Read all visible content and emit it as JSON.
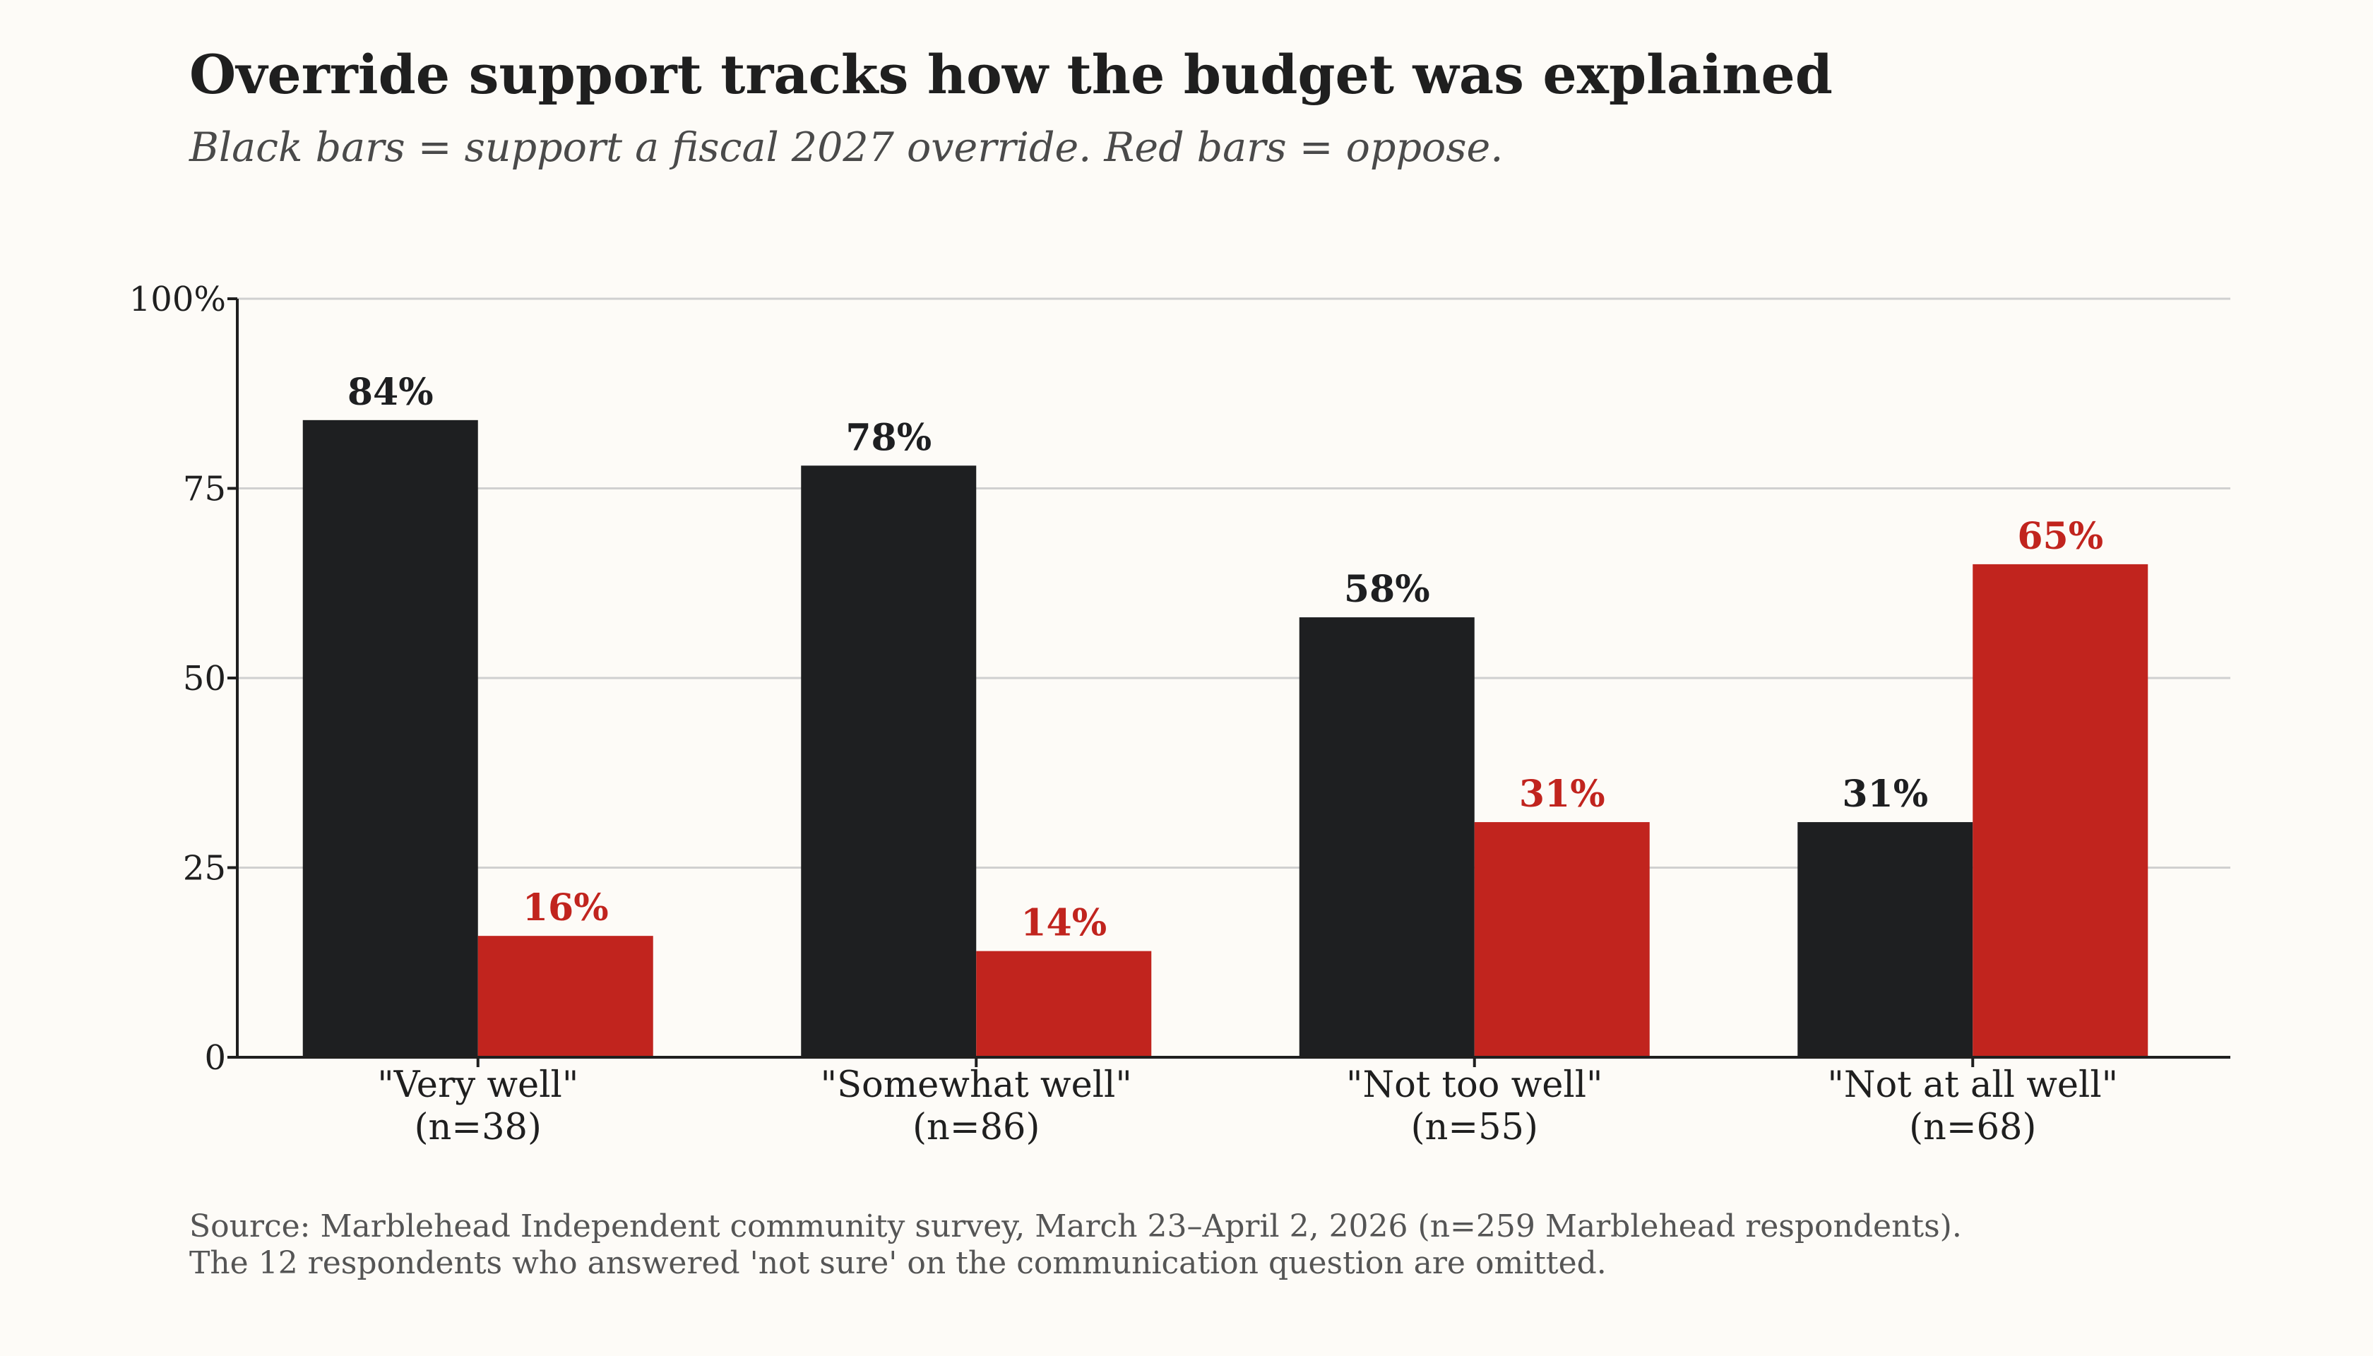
{
  "chart_data": {
    "type": "bar",
    "title": "Override support tracks how the budget was explained",
    "subtitle": "Black bars = support a fiscal 2027 override. Red bars = oppose.",
    "categories": [
      [
        "\"Very well\"",
        "(n=38)"
      ],
      [
        "\"Somewhat well\"",
        "(n=86)"
      ],
      [
        "\"Not too well\"",
        "(n=55)"
      ],
      [
        "\"Not at all well\"",
        "(n=68)"
      ]
    ],
    "series": [
      {
        "values": [
          84,
          78,
          58,
          31
        ],
        "labels": [
          "84%",
          "78%",
          "58%",
          "31%"
        ],
        "color": "#1e1f21",
        "label_color": "#1e1f21"
      },
      {
        "values": [
          16,
          14,
          31,
          65
        ],
        "labels": [
          "16%",
          "14%",
          "31%",
          "65%"
        ],
        "color": "#c1241e",
        "label_color": "#c1241e"
      }
    ],
    "yticks": [
      0,
      25,
      50,
      75,
      100
    ],
    "ytick_labels": [
      "0",
      "25",
      "50",
      "75",
      "100%"
    ],
    "ylim": [
      0,
      100
    ],
    "grid": true,
    "source_lines": [
      "Source: Marblehead Independent community survey, March 23–April 2, 2026 (n=259 Marblehead respondents).",
      "The 12 respondents who answered 'not sure' on the communication question are omitted."
    ]
  }
}
